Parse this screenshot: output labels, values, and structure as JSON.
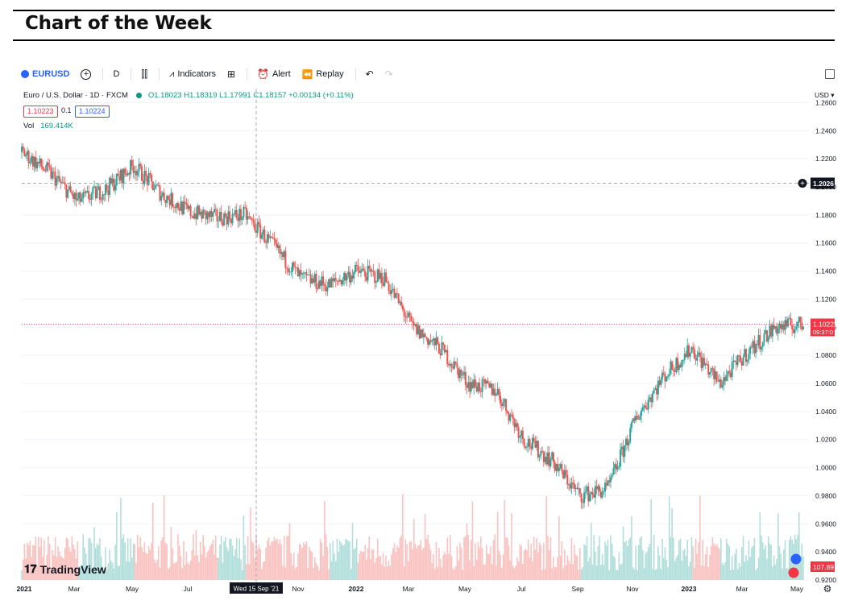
{
  "page": {
    "heading": "Chart of the Week"
  },
  "toolbar": {
    "symbol": "EURUSD",
    "interval": "D",
    "indicators": "Indicators",
    "alert": "Alert",
    "replay": "Replay"
  },
  "legend": {
    "title": "Euro / U.S. Dollar · 1D · FXCM",
    "ohlc": "O1.18023 H1.18319 L1.17991 C1.18157 +0.00134 (+0.11%)",
    "bid": "1.10223",
    "spread": "0.1",
    "ask": "1.10224",
    "vol_label": "Vol",
    "vol_value": "169.414K"
  },
  "branding": {
    "logo_text": "TradingView"
  },
  "chart_data": {
    "type": "line",
    "title": "Euro / U.S. Dollar · 1D · FXCM",
    "currency": "USD",
    "x": [
      "2021-01",
      "2021-02",
      "2021-03",
      "2021-04",
      "2021-05",
      "2021-06",
      "2021-07",
      "2021-08",
      "2021-09",
      "2021-10",
      "2021-11",
      "2021-12",
      "2022-01",
      "2022-02",
      "2022-03",
      "2022-04",
      "2022-05",
      "2022-06",
      "2022-07",
      "2022-08",
      "2022-09",
      "2022-10",
      "2022-11",
      "2022-12",
      "2023-01",
      "2023-02",
      "2023-03",
      "2023-04",
      "2023-05"
    ],
    "series": [
      {
        "values": [
          1.225,
          1.21,
          1.19,
          1.198,
          1.215,
          1.195,
          1.182,
          1.178,
          1.18,
          1.158,
          1.135,
          1.13,
          1.14,
          1.135,
          1.1,
          1.085,
          1.06,
          1.055,
          1.02,
          1.005,
          0.98,
          0.985,
          1.035,
          1.065,
          1.085,
          1.06,
          1.082,
          1.1,
          1.102
        ]
      }
    ],
    "ylim": [
      0.92,
      1.27
    ],
    "y_ticks": [
      "1.2600",
      "1.2400",
      "1.2200",
      "1.2000",
      "1.1800",
      "1.1600",
      "1.1400",
      "1.1200",
      "1.1000",
      "1.0800",
      "1.0600",
      "1.0400",
      "1.0200",
      "1.0000",
      "0.9800",
      "0.9600",
      "0.9400",
      "0.9200"
    ],
    "x_ticks": [
      "2021",
      "Mar",
      "May",
      "Jul",
      "Nov",
      "2022",
      "Mar",
      "May",
      "Jul",
      "Sep",
      "Nov",
      "2023",
      "Mar",
      "May"
    ],
    "crosshair": {
      "date_label": "Wed 15 Sep '21",
      "price_label": "1.2026",
      "price": 1.2026
    },
    "last_price": {
      "label": "1.10223",
      "price": 1.1022,
      "countdown": "09:37:0"
    },
    "volume_label": "107.89",
    "colors": {
      "up": "#26a69a",
      "down": "#ef5350",
      "vol_up": "#b2dfdb",
      "vol_down": "#f8c3c1",
      "last_price": "#f23645"
    }
  }
}
